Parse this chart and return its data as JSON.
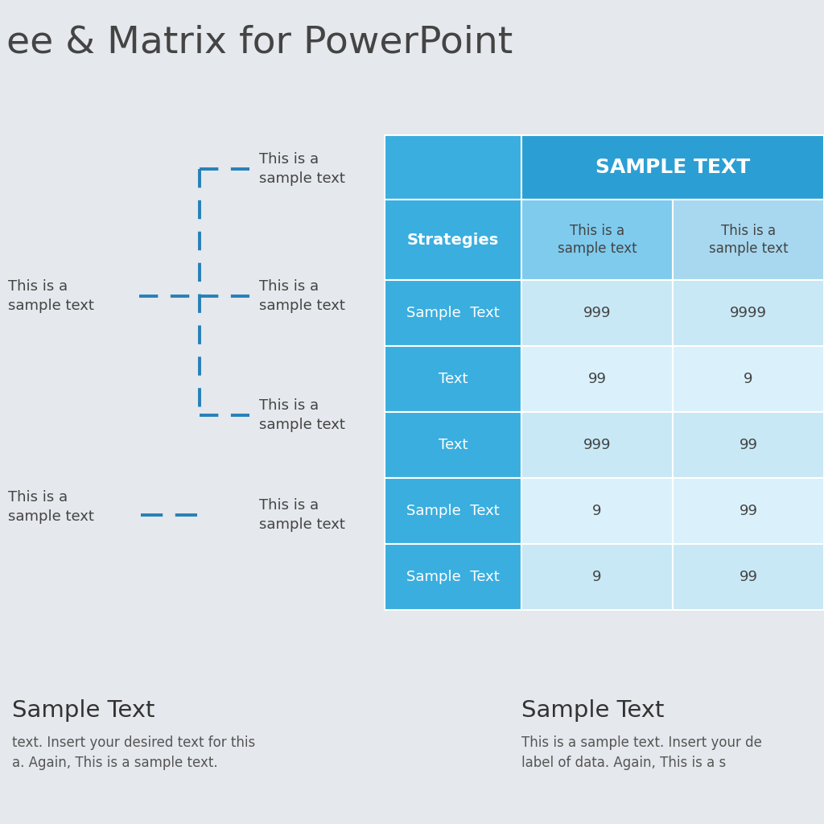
{
  "background_color": "#e5e8ec",
  "title": "ee & Matrix for PowerPoint",
  "title_fontsize": 34,
  "title_color": "#444444",
  "tree_color": "#2680b8",
  "table_header_color": "#2b9fd4",
  "table_subheader_color": "#7ecbee",
  "table_col1_color": "#3aaedf",
  "table_row_colors_alt": [
    "#c8e8f5",
    "#daf1fb"
  ],
  "table_header_text": "SAMPLE TEXT",
  "table_col_headers": [
    "This is a\nsample text",
    "This is a\nsample text"
  ],
  "table_row_labels": [
    "Sample  Text",
    "Text",
    "Text",
    "Sample  Text",
    "Sample  Text"
  ],
  "table_data": [
    [
      "999",
      "9999"
    ],
    [
      "99",
      "9"
    ],
    [
      "999",
      "99"
    ],
    [
      "9",
      "99"
    ],
    [
      "9",
      "99"
    ]
  ],
  "strategies_label": "Strategies",
  "bottom_left_title": "Sample Text",
  "bottom_left_body": "text. Insert your desired text for this\na. Again, This is a sample text.",
  "bottom_right_title": "Sample Text",
  "bottom_right_body": "This is a sample text. Insert your de\nlabel of data. Again, This is a s"
}
